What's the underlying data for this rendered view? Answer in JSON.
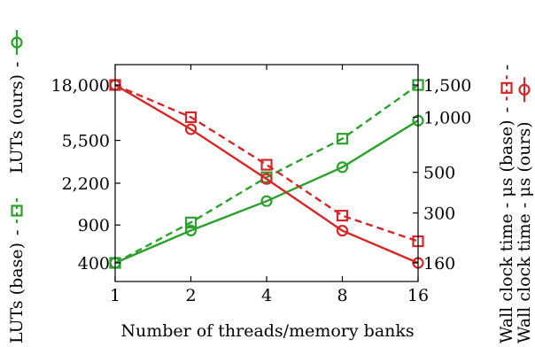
{
  "chart_data": {
    "type": "line",
    "x": [
      1,
      2,
      4,
      8,
      16
    ],
    "x_scale": "log2",
    "xlabel": "Number of threads/memory banks",
    "x_tick_labels": [
      "1",
      "2",
      "4",
      "8",
      "16"
    ],
    "left_axis": {
      "scale": "log",
      "range": [
        400,
        18000
      ],
      "tick_values": [
        400,
        900,
        2200,
        5500,
        18000
      ],
      "tick_labels": [
        "400",
        "900",
        "2,200",
        "5,500",
        "18,000"
      ],
      "legend_labels": [
        "LUTs (base)",
        "LUTs (ours)"
      ],
      "legend_separator": "-"
    },
    "right_axis": {
      "scale": "log",
      "range": [
        160,
        1500
      ],
      "tick_values": [
        160,
        300,
        500,
        1000,
        1500
      ],
      "tick_labels": [
        "160",
        "300",
        "500",
        "1,000",
        "1,500"
      ],
      "legend_labels": [
        "Wall clock time - μs (base)",
        "Wall clock time - μs (ours)"
      ],
      "legend_separator": "-"
    },
    "series": [
      {
        "key": "luts_base",
        "axis": "left",
        "color": "#2ca02c",
        "dash": true,
        "marker": "square",
        "values": [
          400,
          950,
          2500,
          5700,
          18000
        ]
      },
      {
        "key": "luts_ours",
        "axis": "left",
        "color": "#2ca02c",
        "dash": false,
        "marker": "circle",
        "values": [
          400,
          800,
          1500,
          3100,
          8400
        ]
      },
      {
        "key": "time_base",
        "axis": "right",
        "color": "#d62728",
        "dash": true,
        "marker": "square",
        "values": [
          1500,
          1000,
          550,
          290,
          210
        ]
      },
      {
        "key": "time_ours",
        "axis": "right",
        "color": "#d62728",
        "dash": false,
        "marker": "circle",
        "values": [
          1500,
          860,
          460,
          240,
          160
        ]
      }
    ],
    "grid": false
  }
}
